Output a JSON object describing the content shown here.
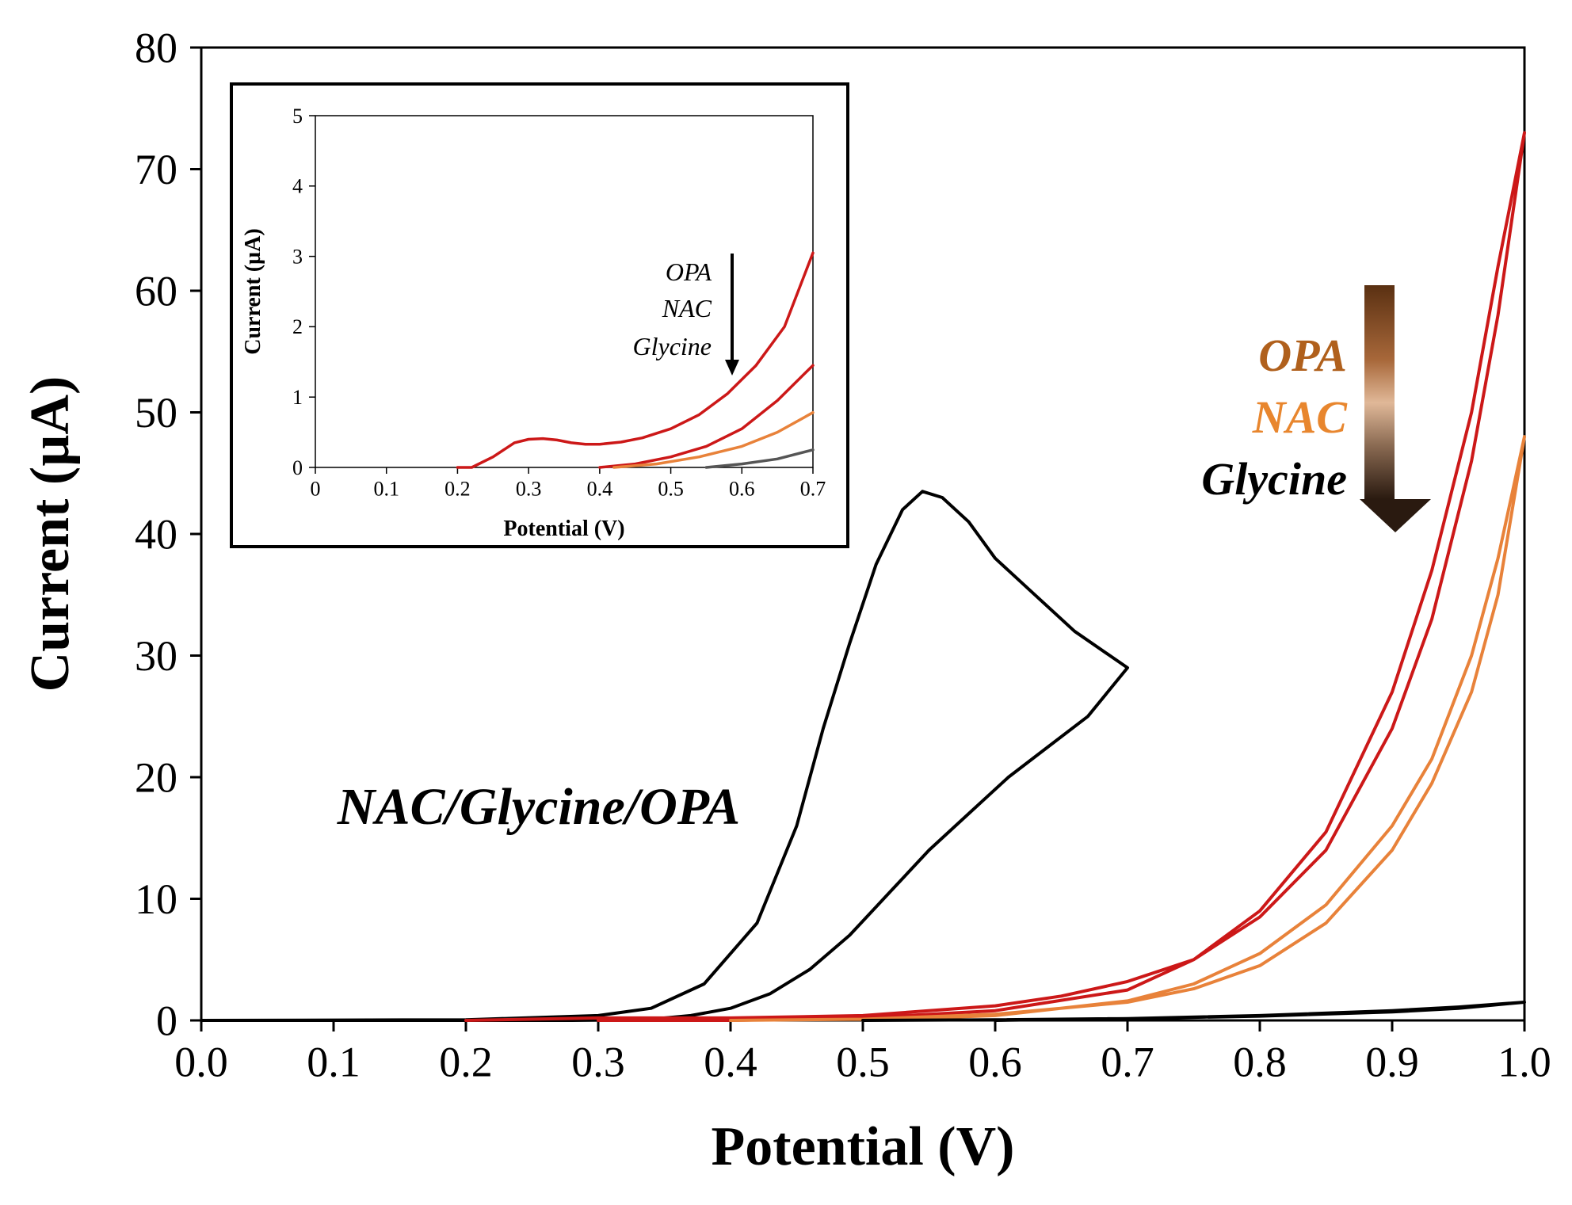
{
  "chart_data": [
    {
      "type": "line",
      "id": "main",
      "xlabel": "Potential (V)",
      "ylabel": "Current (µA)",
      "xlim": [
        0.0,
        1.0
      ],
      "ylim": [
        0,
        80
      ],
      "xticks": [
        "0.0",
        "0.1",
        "0.2",
        "0.3",
        "0.4",
        "0.5",
        "0.6",
        "0.7",
        "0.8",
        "0.9",
        "1.0"
      ],
      "yticks": [
        "0",
        "10",
        "20",
        "30",
        "40",
        "50",
        "60",
        "70",
        "80"
      ],
      "grid": false,
      "series": [
        {
          "name": "NAC/Glycine/OPA",
          "color": "#000000",
          "x": [
            0.0,
            0.2,
            0.3,
            0.34,
            0.38,
            0.42,
            0.45,
            0.47,
            0.49,
            0.51,
            0.53,
            0.545,
            0.56,
            0.58,
            0.6,
            0.63,
            0.66,
            0.7,
            0.67,
            0.64,
            0.61,
            0.58,
            0.55,
            0.52,
            0.49,
            0.46,
            0.43,
            0.4,
            0.37,
            0.34,
            0.31,
            0.28,
            0.2,
            0.0
          ],
          "y": [
            0,
            0.05,
            0.4,
            1.0,
            3.0,
            8.0,
            16.0,
            24.0,
            31.0,
            37.5,
            42.0,
            43.5,
            43.0,
            41.0,
            38.0,
            35.0,
            32.0,
            29.0,
            25.0,
            22.5,
            20.0,
            17.0,
            14.0,
            10.5,
            7.0,
            4.2,
            2.2,
            1.0,
            0.4,
            0.1,
            0.03,
            0.0,
            0.0,
            0.0
          ]
        },
        {
          "name": "OPA",
          "color": "#cc1818",
          "x": [
            0.2,
            0.3,
            0.4,
            0.5,
            0.6,
            0.65,
            0.7,
            0.75,
            0.8,
            0.85,
            0.9,
            0.93,
            0.96,
            0.98,
            1.0,
            0.98,
            0.96,
            0.93,
            0.9,
            0.85,
            0.8,
            0.75,
            0.7,
            0.6,
            0.5,
            0.4,
            0.3
          ],
          "y": [
            0.0,
            0.2,
            0.2,
            0.4,
            1.2,
            2.0,
            3.2,
            5.0,
            8.5,
            14.0,
            24.0,
            33.0,
            46.0,
            58.0,
            73.0,
            62.0,
            50.0,
            37.0,
            27.0,
            15.5,
            9.0,
            5.0,
            2.5,
            0.8,
            0.2,
            0.0,
            0.0
          ]
        },
        {
          "name": "NAC",
          "color": "#e8823a",
          "x": [
            0.4,
            0.5,
            0.6,
            0.7,
            0.75,
            0.8,
            0.85,
            0.9,
            0.93,
            0.96,
            0.98,
            1.0,
            0.98,
            0.96,
            0.93,
            0.9,
            0.85,
            0.8,
            0.75,
            0.7,
            0.6,
            0.5
          ],
          "y": [
            0.0,
            0.1,
            0.5,
            1.5,
            2.6,
            4.5,
            8.0,
            14.0,
            19.5,
            27.0,
            35.0,
            48.0,
            38.0,
            30.0,
            21.5,
            16.0,
            9.5,
            5.5,
            3.0,
            1.6,
            0.4,
            0.0
          ]
        },
        {
          "name": "Glycine",
          "color": "#000000",
          "x": [
            0.5,
            0.6,
            0.7,
            0.8,
            0.9,
            0.95,
            1.0,
            0.95,
            0.9,
            0.8,
            0.7,
            0.6
          ],
          "y": [
            0.0,
            0.05,
            0.15,
            0.35,
            0.7,
            1.0,
            1.5,
            1.1,
            0.8,
            0.4,
            0.15,
            0.0
          ]
        }
      ],
      "annotations": {
        "curve_label": "NAC/Glycine/OPA",
        "legend_labels": [
          {
            "text": "OPA",
            "color": "#b0601c"
          },
          {
            "text": "NAC",
            "color": "#e8862e"
          },
          {
            "text": "Glycine",
            "color": "#000000"
          }
        ]
      }
    },
    {
      "type": "line",
      "id": "inset",
      "xlabel": "Potential (V)",
      "ylabel": "Current (µA)",
      "xlim": [
        0,
        0.7
      ],
      "ylim": [
        0,
        5
      ],
      "xticks": [
        "0",
        "0.1",
        "0.2",
        "0.3",
        "0.4",
        "0.5",
        "0.6",
        "0.7"
      ],
      "yticks": [
        "0",
        "1",
        "2",
        "3",
        "4",
        "5"
      ],
      "grid": false,
      "series": [
        {
          "name": "OPA",
          "color": "#cc1818",
          "x": [
            0.2,
            0.22,
            0.25,
            0.28,
            0.3,
            0.32,
            0.34,
            0.36,
            0.38,
            0.4,
            0.43,
            0.46,
            0.5,
            0.54,
            0.58,
            0.62,
            0.66,
            0.7
          ],
          "y": [
            0.0,
            0.0,
            0.15,
            0.35,
            0.4,
            0.41,
            0.39,
            0.35,
            0.33,
            0.33,
            0.36,
            0.42,
            0.55,
            0.75,
            1.05,
            1.45,
            2.0,
            3.05
          ]
        },
        {
          "name": "OPA-lower",
          "color": "#cc1818",
          "x": [
            0.4,
            0.45,
            0.5,
            0.55,
            0.6,
            0.65,
            0.7
          ],
          "y": [
            0.0,
            0.05,
            0.15,
            0.3,
            0.55,
            0.95,
            1.45
          ]
        },
        {
          "name": "NAC",
          "color": "#e8823a",
          "x": [
            0.42,
            0.48,
            0.54,
            0.6,
            0.65,
            0.7
          ],
          "y": [
            0.0,
            0.05,
            0.15,
            0.3,
            0.5,
            0.78
          ]
        },
        {
          "name": "Glycine",
          "color": "#555555",
          "x": [
            0.55,
            0.6,
            0.65,
            0.7
          ],
          "y": [
            0.0,
            0.05,
            0.12,
            0.25
          ]
        }
      ],
      "annotations": {
        "legend_labels": [
          "OPA",
          "NAC",
          "Glycine"
        ]
      }
    }
  ]
}
